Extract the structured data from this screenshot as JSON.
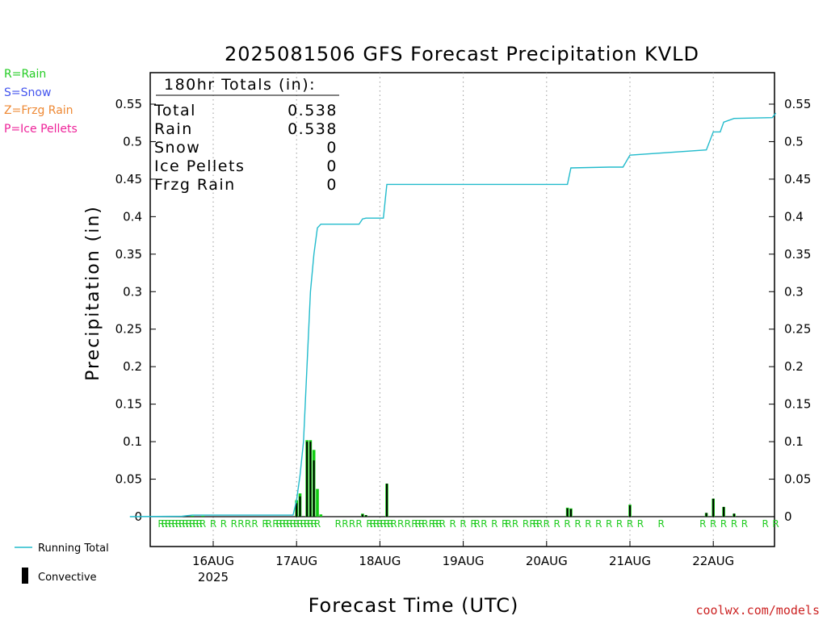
{
  "chart_data": {
    "type": "bar",
    "title": "2025081506 GFS Forecast Precipitation KVLD",
    "xlabel": "Forecast Time (UTC)",
    "ylabel": "Precipitation (in)",
    "ylim": [
      -0.04,
      0.59
    ],
    "xlim_hours": [
      -6,
      180
    ],
    "yticks": [
      0,
      0.05,
      0.1,
      0.15,
      0.2,
      0.25,
      0.3,
      0.35,
      0.4,
      0.45,
      0.5,
      0.55
    ],
    "ytick_labels": [
      "0",
      "0.05",
      "0.1",
      "0.15",
      "0.2",
      "0.25",
      "0.3",
      "0.35",
      "0.4",
      "0.45",
      "0.5",
      "0.55"
    ],
    "xticks_hours": [
      18,
      42,
      66,
      90,
      114,
      138,
      162
    ],
    "xtick_labels": [
      "16AUG",
      "17AUG",
      "18AUG",
      "19AUG",
      "20AUG",
      "21AUG",
      "22AUG"
    ],
    "year_label": "2025",
    "grid": "vertical-dotted",
    "totals": {
      "heading": "180hr Totals (in):",
      "rows": [
        {
          "label": "Total",
          "value": "0.538"
        },
        {
          "label": "Rain",
          "value": "0.538"
        },
        {
          "label": "Snow",
          "value": "0"
        },
        {
          "label": "Ice Pellets",
          "value": "0"
        },
        {
          "label": "Frzg Rain",
          "value": "0"
        }
      ]
    },
    "precip_type_legend": [
      {
        "text": "R=Rain",
        "color": "#22cc22"
      },
      {
        "text": "S=Snow",
        "color": "#4455ee"
      },
      {
        "text": "Z=Frzg Rain",
        "color": "#ee8833"
      },
      {
        "text": "P=Ice Pellets",
        "color": "#ee2299"
      }
    ],
    "series_legend": [
      {
        "text": "Running Total",
        "color": "#22bbcc",
        "kind": "line"
      },
      {
        "text": "Convective",
        "color": "#000000",
        "kind": "bar"
      }
    ],
    "colors": {
      "rain_bar": "#11cc11",
      "convective_bar": "#000000",
      "running_total": "#22bbcc",
      "rain_marker": "#22cc22"
    },
    "precip_bars": [
      {
        "h": 9,
        "total": 0.0005,
        "conv": 0.0
      },
      {
        "h": 12,
        "total": 0.0005,
        "conv": 0.0
      },
      {
        "h": 15,
        "total": 0.0005,
        "conv": 0.0
      },
      {
        "h": 42,
        "total": 0.022,
        "conv": 0.018
      },
      {
        "h": 43,
        "total": 0.031,
        "conv": 0.027
      },
      {
        "h": 45,
        "total": 0.102,
        "conv": 0.1
      },
      {
        "h": 46,
        "total": 0.102,
        "conv": 0.1
      },
      {
        "h": 47,
        "total": 0.089,
        "conv": 0.075
      },
      {
        "h": 48,
        "total": 0.037,
        "conv": 0.0
      },
      {
        "h": 49,
        "total": 0.003,
        "conv": 0.0
      },
      {
        "h": 61,
        "total": 0.004,
        "conv": 0.003
      },
      {
        "h": 62,
        "total": 0.002,
        "conv": 0.002
      },
      {
        "h": 68,
        "total": 0.044,
        "conv": 0.044
      },
      {
        "h": 120,
        "total": 0.012,
        "conv": 0.011
      },
      {
        "h": 121,
        "total": 0.011,
        "conv": 0.01
      },
      {
        "h": 138,
        "total": 0.016,
        "conv": 0.015
      },
      {
        "h": 160,
        "total": 0.005,
        "conv": 0.005
      },
      {
        "h": 162,
        "total": 0.024,
        "conv": 0.024
      },
      {
        "h": 165,
        "total": 0.013,
        "conv": 0.013
      },
      {
        "h": 168,
        "total": 0.004,
        "conv": 0.004
      }
    ],
    "running_total": {
      "x_hours": [
        -6,
        9,
        12,
        41,
        42,
        43,
        44,
        45,
        46,
        47,
        48,
        49,
        60,
        61,
        62,
        67,
        68,
        120,
        121,
        132,
        136,
        138,
        160,
        162,
        164,
        165,
        168,
        179,
        180
      ],
      "values": [
        0,
        0.0005,
        0.002,
        0.002,
        0.022,
        0.055,
        0.1,
        0.2,
        0.3,
        0.35,
        0.385,
        0.39,
        0.39,
        0.397,
        0.398,
        0.398,
        0.443,
        0.443,
        0.465,
        0.466,
        0.466,
        0.482,
        0.489,
        0.513,
        0.513,
        0.526,
        0.531,
        0.532,
        0.538
      ]
    },
    "precip_type_markers": {
      "label": "R",
      "x_hours": [
        3,
        4,
        5,
        6,
        7,
        8,
        9,
        10,
        11,
        12,
        13,
        14,
        15,
        18,
        21,
        24,
        26,
        28,
        30,
        33,
        34,
        36,
        37,
        38,
        39,
        40,
        41,
        42,
        43,
        44,
        45,
        46,
        47,
        48,
        54,
        56,
        58,
        60,
        63,
        64,
        65,
        66,
        67,
        68,
        69,
        70,
        72,
        74,
        76,
        77,
        78,
        79,
        81,
        82,
        83,
        84,
        87,
        90,
        93,
        94,
        96,
        99,
        102,
        103,
        105,
        108,
        110,
        111,
        112,
        114,
        117,
        120,
        123,
        126,
        129,
        132,
        135,
        138,
        141,
        147,
        159,
        162,
        165,
        168,
        171,
        177,
        180
      ]
    },
    "credit": "coolwx.com/models"
  }
}
